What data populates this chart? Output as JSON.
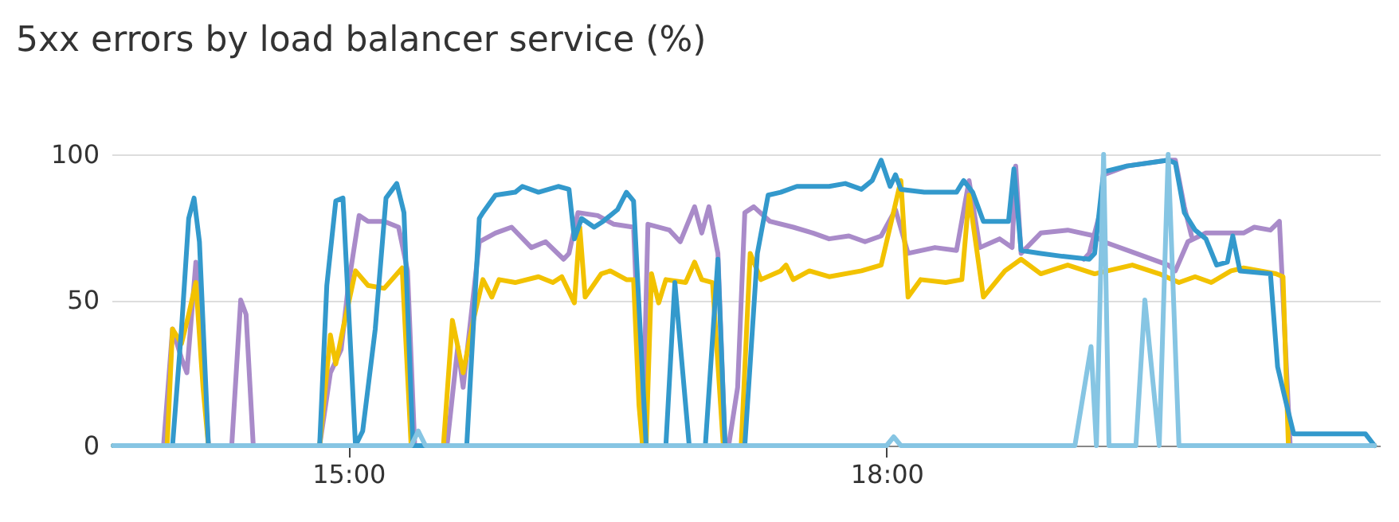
{
  "chart_data": {
    "type": "line",
    "title": "5xx errors by load balancer service (%)",
    "xlim": [
      13.68,
      20.75
    ],
    "ylim": [
      0,
      100
    ],
    "xticks": [
      {
        "value": 15,
        "label": "15:00"
      },
      {
        "value": 18,
        "label": "18:00"
      }
    ],
    "yticks": [
      0,
      50,
      100
    ],
    "grid": "y",
    "series": [
      {
        "color": "#a98bc9",
        "x": [
          13.69,
          13.97,
          14.02,
          14.07,
          14.1,
          14.15,
          14.17,
          14.22,
          14.35,
          14.4,
          14.43,
          14.47,
          14.84,
          14.9,
          14.96,
          15.0,
          15.06,
          15.11,
          15.2,
          15.28,
          15.33,
          15.37,
          15.55,
          15.61,
          15.64,
          15.73,
          15.82,
          15.91,
          16.02,
          16.1,
          16.2,
          16.23,
          16.28,
          16.39,
          16.48,
          16.59,
          16.64,
          16.67,
          16.79,
          16.85,
          16.93,
          16.97,
          17.01,
          17.06,
          17.1,
          17.12,
          17.17,
          17.21,
          17.26,
          17.35,
          17.48,
          17.59,
          17.68,
          17.79,
          17.88,
          17.97,
          18.05,
          18.12,
          18.27,
          18.39,
          18.46,
          18.52,
          18.63,
          18.7,
          18.72,
          18.75,
          18.86,
          19.01,
          19.16,
          19.21,
          19.39,
          19.57,
          19.61,
          19.68,
          19.78,
          19.99,
          20.05,
          20.14,
          20.19,
          20.25,
          20.72
        ],
        "values": [
          0,
          0,
          40,
          30,
          25,
          63,
          50,
          0,
          0,
          50,
          45,
          0,
          0,
          25,
          33,
          55,
          79,
          77,
          77,
          75,
          60,
          0,
          0,
          34,
          20,
          70,
          73,
          75,
          68,
          70,
          64,
          66,
          80,
          79,
          76,
          75,
          0,
          76,
          74,
          70,
          82,
          73,
          82,
          66,
          0,
          0,
          20,
          80,
          82,
          77,
          75,
          73,
          71,
          72,
          70,
          72,
          81,
          66,
          68,
          67,
          91,
          68,
          71,
          68,
          96,
          66,
          73,
          74,
          72,
          70,
          66,
          62,
          60,
          70,
          73,
          73,
          75,
          74,
          77,
          0,
          0
        ]
      },
      {
        "color": "#a98bc9",
        "x": [
          19.1,
          19.13,
          19.19,
          19.21,
          19.34,
          19.57,
          19.61,
          19.66,
          19.7
        ],
        "values": [
          64,
          66,
          80,
          93,
          96,
          98,
          98,
          82,
          72
        ]
      },
      {
        "color": "#f2c200",
        "x": [
          13.69,
          13.99,
          14.02,
          14.07,
          14.11,
          14.15,
          14.19,
          14.22,
          14.84,
          14.9,
          14.93,
          14.97,
          15.04,
          15.11,
          15.2,
          15.3,
          15.35,
          15.53,
          15.58,
          15.64,
          15.7,
          15.75,
          15.8,
          15.84,
          15.93,
          16.06,
          16.14,
          16.19,
          16.26,
          16.29,
          16.32,
          16.41,
          16.46,
          16.55,
          16.59,
          16.62,
          16.64,
          16.66,
          16.69,
          16.73,
          16.77,
          16.88,
          16.93,
          16.97,
          17.03,
          17.09,
          17.19,
          17.24,
          17.3,
          17.41,
          17.44,
          17.48,
          17.57,
          17.68,
          17.86,
          17.97,
          18.08,
          18.12,
          18.19,
          18.33,
          18.42,
          18.46,
          18.54,
          18.66,
          18.75,
          18.86,
          19.01,
          19.16,
          19.37,
          19.52,
          19.63,
          19.72,
          19.81,
          19.92,
          19.99,
          20.17,
          20.21,
          20.24,
          20.72
        ],
        "values": [
          0,
          0,
          40,
          35,
          45,
          56,
          20,
          0,
          0,
          38,
          28,
          40,
          60,
          55,
          54,
          61,
          0,
          0,
          43,
          25,
          44,
          57,
          51,
          57,
          56,
          58,
          56,
          58,
          49,
          75,
          51,
          59,
          60,
          57,
          57,
          14,
          0,
          0,
          59,
          49,
          57,
          56,
          63,
          57,
          56,
          0,
          0,
          66,
          57,
          60,
          62,
          57,
          60,
          58,
          60,
          62,
          91,
          51,
          57,
          56,
          57,
          86,
          51,
          60,
          64,
          59,
          62,
          59,
          62,
          59,
          56,
          58,
          56,
          60,
          61,
          59,
          58,
          0,
          0
        ]
      },
      {
        "color": "#3399cc",
        "x": [
          13.69,
          14.02,
          14.07,
          14.11,
          14.14,
          14.17,
          14.22,
          14.84,
          14.88,
          14.93,
          14.97,
          15.04,
          15.08,
          15.15,
          15.21,
          15.27,
          15.31,
          15.36,
          15.66,
          15.73,
          15.75,
          15.82,
          15.93,
          15.97,
          16.06,
          16.17,
          16.23,
          16.26,
          16.3,
          16.37,
          16.42,
          16.5,
          16.55,
          16.59,
          16.66,
          16.77,
          16.82,
          16.9,
          16.99,
          17.06,
          17.1,
          17.21,
          17.28,
          17.34,
          17.41,
          17.5,
          17.62,
          17.68,
          17.77,
          17.86,
          17.92,
          17.97,
          18.02,
          18.05,
          18.08,
          18.21,
          18.39,
          18.43,
          18.48,
          18.54,
          18.68,
          18.71,
          18.75,
          18.86,
          18.98,
          19.13,
          19.16,
          19.21,
          19.34,
          19.57,
          19.61,
          19.66,
          19.72,
          19.78,
          19.84,
          19.9,
          19.93,
          19.97,
          20.14,
          20.18,
          20.23,
          20.27,
          20.67,
          20.72
        ],
        "values": [
          0,
          0,
          40,
          78,
          85,
          70,
          0,
          0,
          55,
          84,
          85,
          0,
          5,
          40,
          85,
          90,
          80,
          0,
          0,
          78,
          80,
          86,
          87,
          89,
          87,
          89,
          88,
          71,
          78,
          75,
          77,
          81,
          87,
          84,
          0,
          0,
          56,
          0,
          0,
          64,
          0,
          0,
          66,
          86,
          87,
          89,
          89,
          89,
          90,
          88,
          91,
          98,
          89,
          93,
          88,
          87,
          87,
          91,
          87,
          77,
          77,
          95,
          67,
          66,
          65,
          64,
          66,
          94,
          96,
          98,
          97,
          80,
          74,
          71,
          62,
          63,
          72,
          60,
          59,
          27,
          14,
          4,
          4,
          0
        ]
      },
      {
        "color": "#86c5e3",
        "x": [
          13.69,
          15.35,
          15.39,
          15.43,
          18.0,
          18.04,
          18.08,
          19.05,
          19.14,
          19.17,
          19.21,
          19.24,
          19.39,
          19.44,
          19.52,
          19.57,
          19.63,
          20.72
        ],
        "values": [
          0,
          0,
          5,
          0,
          0,
          3,
          0,
          0,
          34,
          0,
          100,
          0,
          0,
          50,
          0,
          100,
          0,
          0
        ]
      }
    ]
  }
}
